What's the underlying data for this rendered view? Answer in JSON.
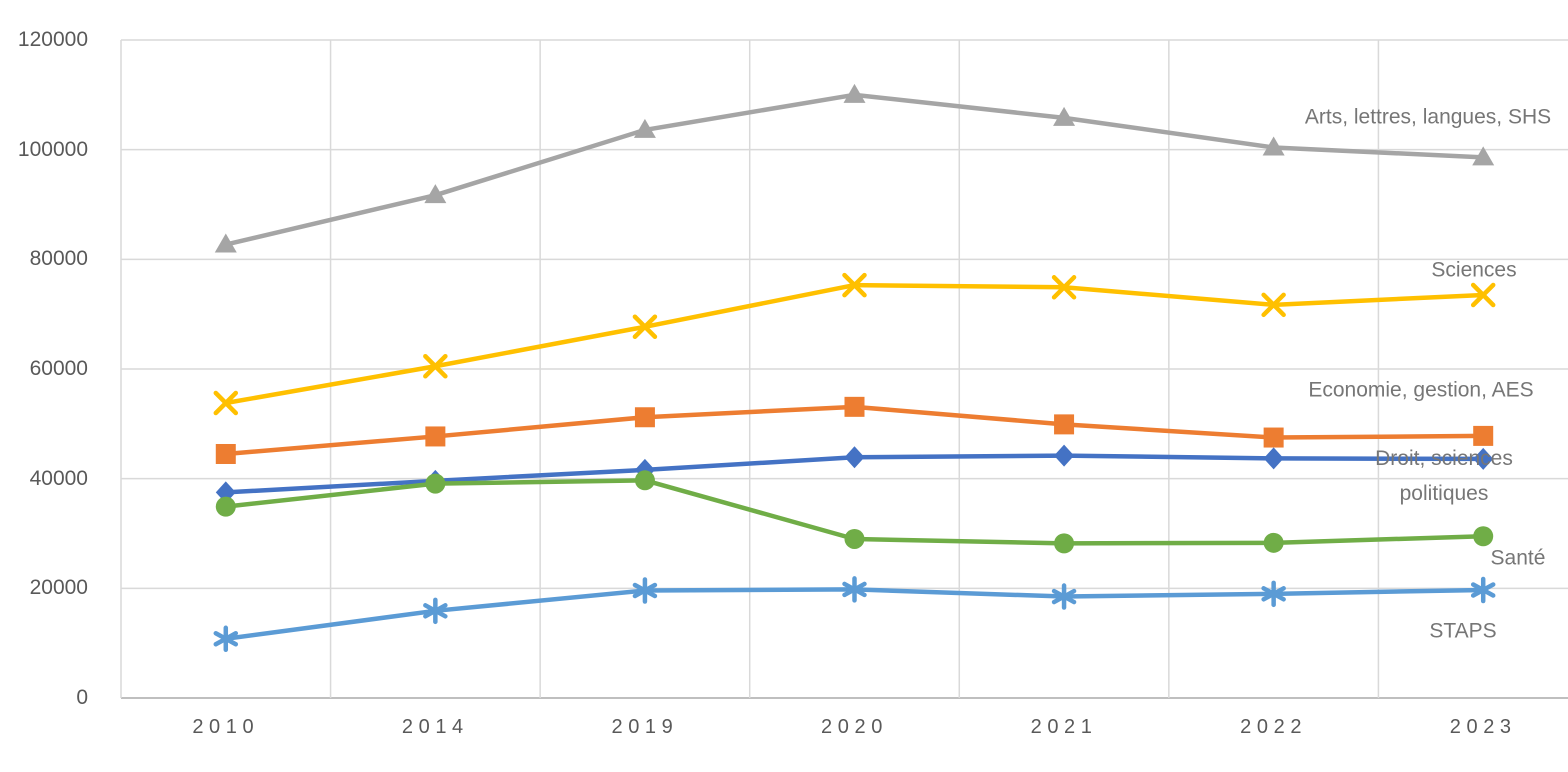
{
  "chart_data": {
    "type": "line",
    "title": "",
    "xlabel": "",
    "ylabel": "",
    "categories": [
      "2010",
      "2014",
      "2019",
      "2020",
      "2021",
      "2022",
      "2023"
    ],
    "series": [
      {
        "name": "Droit, sciences politiques",
        "color": "#4472C4",
        "marker": "diamond",
        "values": [
          37500,
          39600,
          41600,
          43900,
          44200,
          43700,
          43600
        ]
      },
      {
        "name": "Economie, gestion, AES",
        "color": "#ED7D31",
        "marker": "square",
        "values": [
          44500,
          47700,
          51200,
          53100,
          49900,
          47500,
          47800
        ]
      },
      {
        "name": "Arts, lettres, langues, SHS",
        "color": "#A5A5A5",
        "marker": "triangle",
        "values": [
          82700,
          91700,
          103600,
          110000,
          105800,
          100400,
          98600
        ]
      },
      {
        "name": "Sciences",
        "color": "#FFC000",
        "marker": "x",
        "values": [
          53800,
          60500,
          67700,
          75300,
          74900,
          71700,
          73500
        ]
      },
      {
        "name": "STAPS",
        "color": "#5B9BD5",
        "marker": "asterisk",
        "values": [
          10800,
          15900,
          19600,
          19800,
          18500,
          19000,
          19700
        ]
      },
      {
        "name": "Santé",
        "color": "#70AD47",
        "marker": "circle",
        "values": [
          34900,
          39100,
          39700,
          29000,
          28200,
          28300,
          29500
        ]
      }
    ],
    "ylim": [
      0,
      120000
    ],
    "ytick_step": 20000,
    "yticks": [
      "0",
      "20000",
      "40000",
      "60000",
      "80000",
      "100000",
      "120000"
    ],
    "grid": true,
    "legend_position": "inline-right-labels",
    "colors": {
      "gridline": "#D9D9D9",
      "axis_line": "#BFBFBF",
      "tick_text": "#595959",
      "series_label_text": "#767676",
      "background": "#FFFFFF"
    }
  }
}
